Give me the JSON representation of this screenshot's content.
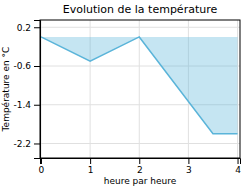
{
  "chart_data": {
    "type": "area",
    "title": "Evolution de la température",
    "xlabel": "heure par heure",
    "ylabel": "Température en °C",
    "x": [
      0,
      1,
      2,
      3.5,
      4
    ],
    "values": [
      0.0,
      -0.5,
      0.0,
      -2.0,
      -2.0
    ],
    "color": "#5ab4d9",
    "xlim": [
      -0.02,
      4.05
    ],
    "ylim": [
      -2.5,
      0.35
    ],
    "xticks": [
      0,
      1,
      2,
      3,
      4
    ],
    "yticks": [
      0.2,
      -0.6,
      -1.4,
      -2.2
    ],
    "grid": true
  }
}
